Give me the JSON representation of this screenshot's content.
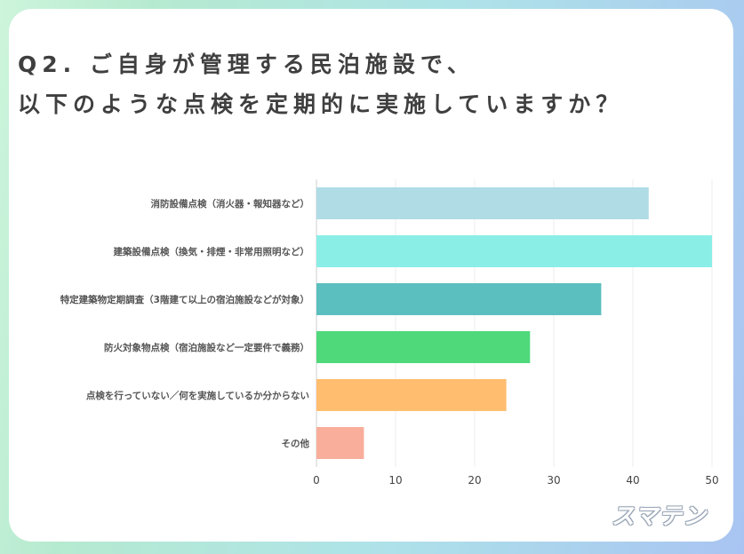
{
  "title_lines": [
    "Q2. ご自身が管理する民泊施設で、",
    "以下のような点検を定期的に実施していますか？"
  ],
  "logo_text": "スマテン",
  "chart_data": {
    "type": "bar",
    "orientation": "horizontal",
    "title": "Q2. ご自身が管理する民泊施設で、以下のような点検を定期的に実施していますか？",
    "xlabel": "",
    "ylabel": "",
    "categories": [
      "消防設備点検（消火器・報知器など）",
      "建築設備点検（換気・排煙・非常用照明など）",
      "特定建築物定期調査（3階建て以上の宿泊施設などが対象）",
      "防火対象物点検（宿泊施設など一定要件で義務）",
      "点検を行っていない／何を実施しているか分からない",
      "その他"
    ],
    "values": [
      42,
      50,
      36,
      27,
      24,
      6
    ],
    "colors": [
      "#b0dce6",
      "#8aeee6",
      "#5bbfbf",
      "#4fd97b",
      "#ffbd70",
      "#f9ae9c"
    ],
    "xlim": [
      0,
      50
    ],
    "xticks": [
      0,
      10,
      20,
      30,
      40,
      50
    ],
    "grid": true,
    "legend": "none"
  }
}
